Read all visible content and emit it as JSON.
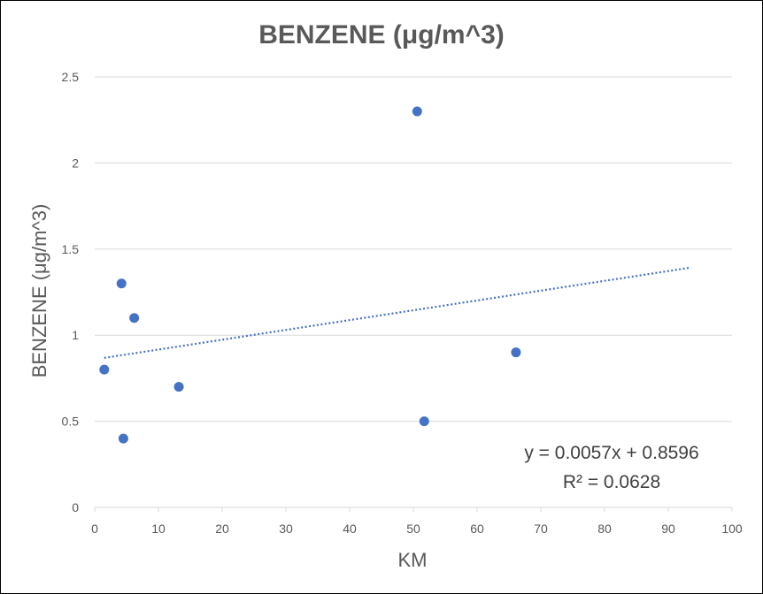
{
  "chart_data": {
    "type": "scatter",
    "title": "BENZENE (μg/m^3)",
    "xlabel": "KM",
    "ylabel": "BENZENE (μg/m^3)",
    "xlim": [
      0,
      100
    ],
    "ylim": [
      0,
      2.5
    ],
    "xticks": [
      0,
      10,
      20,
      30,
      40,
      50,
      60,
      70,
      80,
      90,
      100
    ],
    "yticks": [
      0,
      0.5,
      1,
      1.5,
      2,
      2.5
    ],
    "grid": "horizontal",
    "series": [
      {
        "points": [
          {
            "x": 1.5,
            "y": 0.8
          },
          {
            "x": 4.2,
            "y": 1.3
          },
          {
            "x": 4.5,
            "y": 0.4
          },
          {
            "x": 6.2,
            "y": 1.1
          },
          {
            "x": 13.2,
            "y": 0.7
          },
          {
            "x": 50.6,
            "y": 2.3
          },
          {
            "x": 51.7,
            "y": 0.5
          },
          {
            "x": 66.1,
            "y": 0.9
          }
        ],
        "color": "#4472C4"
      }
    ],
    "trendline": {
      "type": "linear",
      "slope": 0.0057,
      "intercept": 0.8596,
      "x_range": [
        1.5,
        93.2
      ],
      "style": "dotted",
      "color": "#4472C4",
      "equation_label": "y = 0.0057x + 0.8596",
      "r2_label": "R² = 0.0628"
    }
  }
}
